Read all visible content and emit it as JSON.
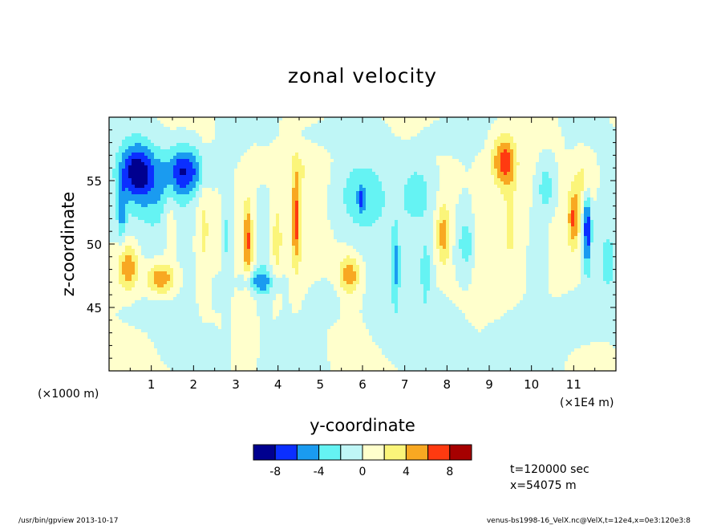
{
  "chart_data": {
    "type": "heatmap",
    "title": "zonal velocity",
    "xlabel": "y-coordinate",
    "ylabel": "z-coordinate",
    "x_unit_note": "(×1E4 m)",
    "y_unit_note": "(×1000 m)",
    "xlim": [
      0,
      120000
    ],
    "ylim": [
      40000,
      60000
    ],
    "x_ticks": [
      "1",
      "2",
      "3",
      "4",
      "5",
      "6",
      "7",
      "8",
      "9",
      "10",
      "11"
    ],
    "y_ticks": [
      "45",
      "50",
      "55"
    ],
    "colorbar": {
      "levels": [
        -10,
        -8,
        -6,
        -4,
        -2,
        0,
        2,
        4,
        6,
        8,
        10
      ],
      "colors": [
        "#00008f",
        "#0b2fff",
        "#1a9bf0",
        "#65f3f3",
        "#bff6f6",
        "#ffffcc",
        "#fbf57a",
        "#f8a822",
        "#ff3a10",
        "#a60000"
      ],
      "tick_labels": [
        "-8",
        "-4",
        "0",
        "4",
        "8"
      ]
    },
    "annotations": [
      "t=120000 sec",
      "x=54075 m"
    ],
    "footer_left": "/usr/bin/gpview  2013-10-17",
    "footer_right": "venus-bs1998-16_VelX.nc@VelX,t=12e4,x=0e3:120e3:8",
    "features": [
      {
        "y": 6500,
        "z": 55800,
        "sy": 4200,
        "sz": 2200,
        "amp": -8.5
      },
      {
        "y": 18000,
        "z": 55800,
        "sy": 4800,
        "sz": 1900,
        "amp": -7.5
      },
      {
        "y": 12000,
        "z": 54000,
        "sy": 6500,
        "sz": 2500,
        "amp": -2.6
      },
      {
        "y": 3000,
        "z": 52500,
        "sy": 1100,
        "sz": 2300,
        "amp": -4.2
      },
      {
        "y": 4500,
        "z": 48200,
        "sy": 2500,
        "sz": 1900,
        "amp": 5.8
      },
      {
        "y": 12200,
        "z": 47300,
        "sy": 3400,
        "sz": 1300,
        "amp": 6.2
      },
      {
        "y": 14500,
        "z": 52500,
        "sy": 1700,
        "sz": 3500,
        "amp": 2.6
      },
      {
        "y": 22500,
        "z": 51500,
        "sy": 1500,
        "sz": 5500,
        "amp": 2.1
      },
      {
        "y": 28000,
        "z": 50500,
        "sy": 1300,
        "sz": 5500,
        "amp": -2.9
      },
      {
        "y": 32800,
        "z": 50200,
        "sy": 1000,
        "sz": 3200,
        "amp": 6.0
      },
      {
        "y": 36500,
        "z": 50500,
        "sy": 1400,
        "sz": 5500,
        "amp": -2.4
      },
      {
        "y": 35500,
        "z": 47000,
        "sy": 3800,
        "sz": 900,
        "amp": -5.0
      },
      {
        "y": 39800,
        "z": 50300,
        "sy": 1100,
        "sz": 2800,
        "amp": 3.1
      },
      {
        "y": 44300,
        "z": 51800,
        "sy": 1100,
        "sz": 3800,
        "amp": 6.5
      },
      {
        "y": 45500,
        "z": 55800,
        "sy": 5000,
        "sz": 1700,
        "amp": 1.4
      },
      {
        "y": 36000,
        "z": 56000,
        "sy": 2500,
        "sz": 1400,
        "amp": 2.4
      },
      {
        "y": 59500,
        "z": 53800,
        "sy": 5500,
        "sz": 2600,
        "amp": -3.0
      },
      {
        "y": 59800,
        "z": 53500,
        "sy": 700,
        "sz": 900,
        "amp": -4.6
      },
      {
        "y": 57000,
        "z": 47600,
        "sy": 2500,
        "sz": 1500,
        "amp": 5.4
      },
      {
        "y": 67800,
        "z": 48200,
        "sy": 900,
        "sz": 2800,
        "amp": -4.2
      },
      {
        "y": 73000,
        "z": 54000,
        "sy": 3700,
        "sz": 2500,
        "amp": -3.0
      },
      {
        "y": 79200,
        "z": 50800,
        "sy": 1700,
        "sz": 2300,
        "amp": 4.9
      },
      {
        "y": 75000,
        "z": 48000,
        "sy": 1500,
        "sz": 2800,
        "amp": -2.6
      },
      {
        "y": 84500,
        "z": 50000,
        "sy": 2600,
        "sz": 2600,
        "amp": -3.4
      },
      {
        "y": 93500,
        "z": 56500,
        "sy": 2700,
        "sz": 2000,
        "amp": 7.2
      },
      {
        "y": 95000,
        "z": 51800,
        "sy": 1300,
        "sz": 3200,
        "amp": 2.8
      },
      {
        "y": 87500,
        "z": 50000,
        "sy": 1300,
        "sz": 4500,
        "amp": 2.3
      },
      {
        "y": 103500,
        "z": 54500,
        "sy": 2000,
        "sz": 2000,
        "amp": -3.5
      },
      {
        "y": 101500,
        "z": 49500,
        "sy": 2000,
        "sz": 4200,
        "amp": -2.1
      },
      {
        "y": 110000,
        "z": 52000,
        "sy": 1400,
        "sz": 2300,
        "amp": 6.6
      },
      {
        "y": 113200,
        "z": 51200,
        "sy": 900,
        "sz": 3300,
        "amp": -7.4
      },
      {
        "y": 112800,
        "z": 55000,
        "sy": 2500,
        "sz": 2000,
        "amp": 3.6
      },
      {
        "y": 118000,
        "z": 48500,
        "sy": 1500,
        "sz": 1900,
        "amp": -3.0
      },
      {
        "y": 9000,
        "z": 44500,
        "sy": 5000,
        "sz": 800,
        "amp": -1.5
      },
      {
        "y": 25500,
        "z": 46200,
        "sy": 1500,
        "sz": 1200,
        "amp": -1.6
      },
      {
        "y": 51500,
        "z": 45500,
        "sy": 3000,
        "sz": 1400,
        "amp": -1.4
      },
      {
        "y": 75000,
        "z": 43500,
        "sy": 9000,
        "sz": 2200,
        "amp": -1.4
      },
      {
        "y": 90000,
        "z": 41500,
        "sy": 12000,
        "sz": 1500,
        "amp": -1.3
      },
      {
        "y": 20000,
        "z": 42000,
        "sy": 6000,
        "sz": 1500,
        "amp": -1.1
      },
      {
        "y": 110000,
        "z": 44000,
        "sy": 6000,
        "sz": 1800,
        "amp": -1.4
      },
      {
        "y": 53000,
        "z": 58500,
        "sy": 8000,
        "sz": 900,
        "amp": -1.1
      },
      {
        "y": 80000,
        "z": 58500,
        "sy": 6000,
        "sz": 1000,
        "amp": -1.0
      }
    ]
  }
}
